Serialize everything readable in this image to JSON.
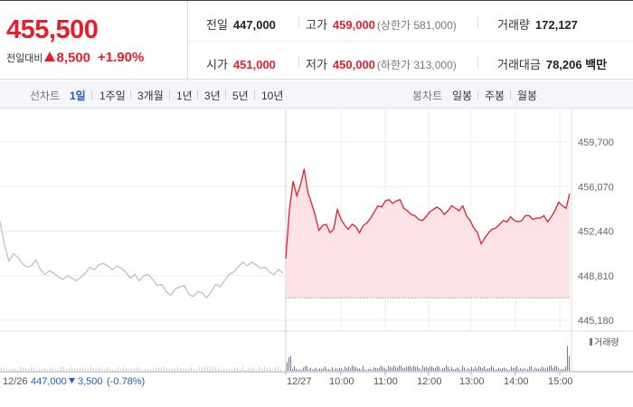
{
  "summary": {
    "price": "455,500",
    "change_label": "전일대비",
    "change": "8,500",
    "change_rate": "+1.90%",
    "prev_close_label": "전일",
    "prev_close": "447,000",
    "high_label": "고가",
    "high": "459,000",
    "upper_limit": "(상한가 581,000)",
    "volume_label": "거래량",
    "volume": "172,127",
    "open_label": "시가",
    "open": "451,000",
    "low_label": "저가",
    "low": "450,000",
    "lower_limit": "(하한가 313,000)",
    "amount_label": "거래대금",
    "amount": "78,206 백만"
  },
  "periodbar": {
    "line_label": "선차트",
    "periods": [
      "1일",
      "1주일",
      "3개월",
      "1년",
      "3년",
      "5년",
      "10년"
    ],
    "active_period": "1일",
    "candle_label": "봉차트",
    "candles": [
      "일봉",
      "주봉",
      "월봉"
    ]
  },
  "colors": {
    "up": "#e41e2a",
    "down": "#1a5ecb",
    "prev_line": "#bbbbbb",
    "fill": "#fde3e5",
    "volume": "#7b6fa8"
  },
  "chart_data": {
    "type": "line",
    "y_ticks": [
      "459,700",
      "456,070",
      "452,440",
      "448,810",
      "445,180"
    ],
    "ylim": [
      445180,
      459700
    ],
    "x_ticks": [
      "12/27",
      "10:00",
      "11:00",
      "12:00",
      "13:00",
      "14:00",
      "15:00"
    ],
    "prev_day_label": "12/26",
    "prev_day_close": "447,000",
    "prev_day_change": "3,500",
    "prev_day_rate": "(-0.78%)",
    "volume_label": "거래량",
    "prev_close_line": 447000,
    "series": [
      {
        "session": "12/26",
        "values": [
          453200,
          451300,
          450000,
          450600,
          450300,
          449800,
          449500,
          449600,
          450100,
          449300,
          448900,
          449200,
          449000,
          448700,
          448500,
          448800,
          448600,
          448400,
          448700,
          449000,
          449500,
          449300,
          449700,
          449800,
          449600,
          449300,
          449600,
          449400,
          449100,
          448600,
          448900,
          448400,
          448800,
          448900,
          448500,
          448000,
          448100,
          447500,
          447200,
          447700,
          447900,
          448000,
          447300,
          447100,
          447500,
          447400,
          447000,
          447500,
          448100,
          447900,
          448400,
          448900,
          449100,
          449500,
          449900,
          449600,
          449900,
          449700,
          449400,
          449500,
          449100,
          448900,
          449300,
          449000
        ]
      },
      {
        "session": "12/27",
        "values": [
          450200,
          454200,
          456500,
          455300,
          456200,
          457500,
          455600,
          454700,
          453700,
          452500,
          452900,
          453000,
          452300,
          452600,
          454200,
          453400,
          452900,
          452600,
          453000,
          452800,
          452300,
          452900,
          453100,
          453500,
          454000,
          454500,
          454400,
          454900,
          455000,
          454700,
          454900,
          455000,
          454300,
          454100,
          453800,
          453700,
          453400,
          453300,
          453600,
          454000,
          454200,
          454400,
          454200,
          453800,
          454100,
          454500,
          454300,
          454100,
          454500,
          453700,
          453300,
          452700,
          452300,
          451400,
          451900,
          452300,
          452600,
          452700,
          453000,
          453300,
          453200,
          453600,
          453300,
          453200,
          453300,
          453700,
          453700,
          453400,
          453500,
          453500,
          453700,
          453200,
          453600,
          454100,
          454800,
          454500,
          454300,
          455500
        ]
      }
    ]
  }
}
